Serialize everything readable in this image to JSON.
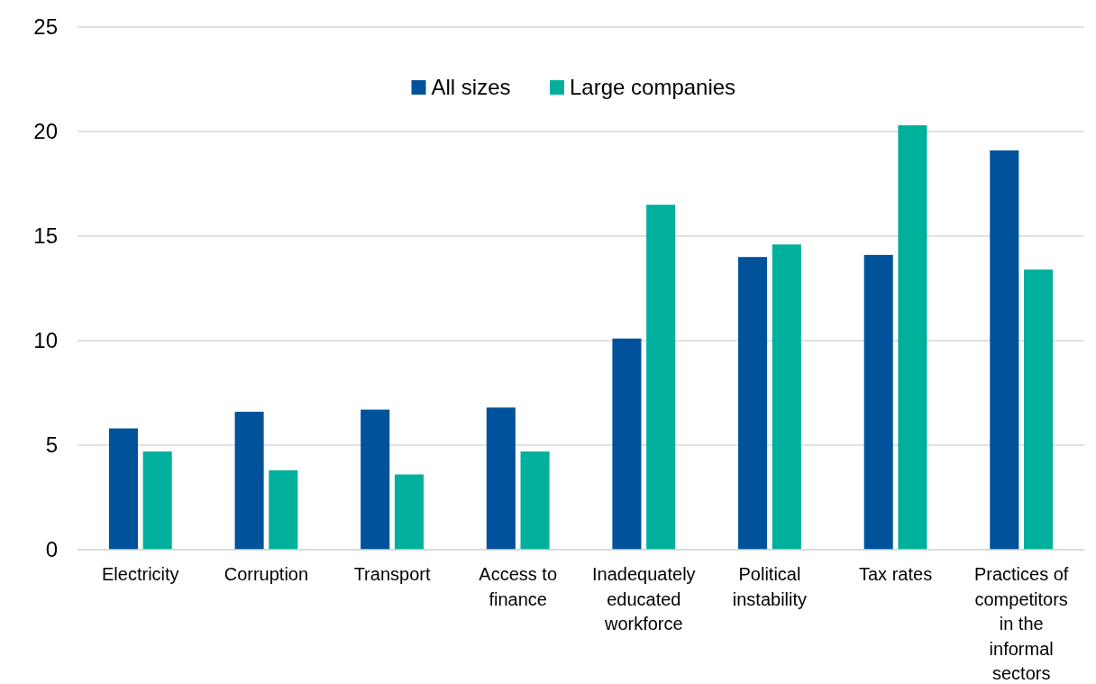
{
  "chart_data": {
    "type": "bar",
    "categories": [
      "Electricity",
      "Corruption",
      "Transport",
      "Access to finance",
      "Inadequately educated workforce",
      "Political instability",
      "Tax rates",
      "Practices of competitors in the informal sectors"
    ],
    "series": [
      {
        "name": "All sizes",
        "color": "#00529b",
        "values": [
          5.8,
          6.6,
          6.7,
          6.8,
          10.1,
          14.0,
          14.1,
          19.1
        ]
      },
      {
        "name": "Large companies",
        "color": "#00b09c",
        "values": [
          4.7,
          3.8,
          3.6,
          4.7,
          16.5,
          14.6,
          20.3,
          13.4
        ]
      }
    ],
    "ylim": [
      0,
      25
    ],
    "yticks": [
      0,
      5,
      10,
      15,
      20,
      25
    ],
    "grid": "y",
    "legend": "top"
  }
}
